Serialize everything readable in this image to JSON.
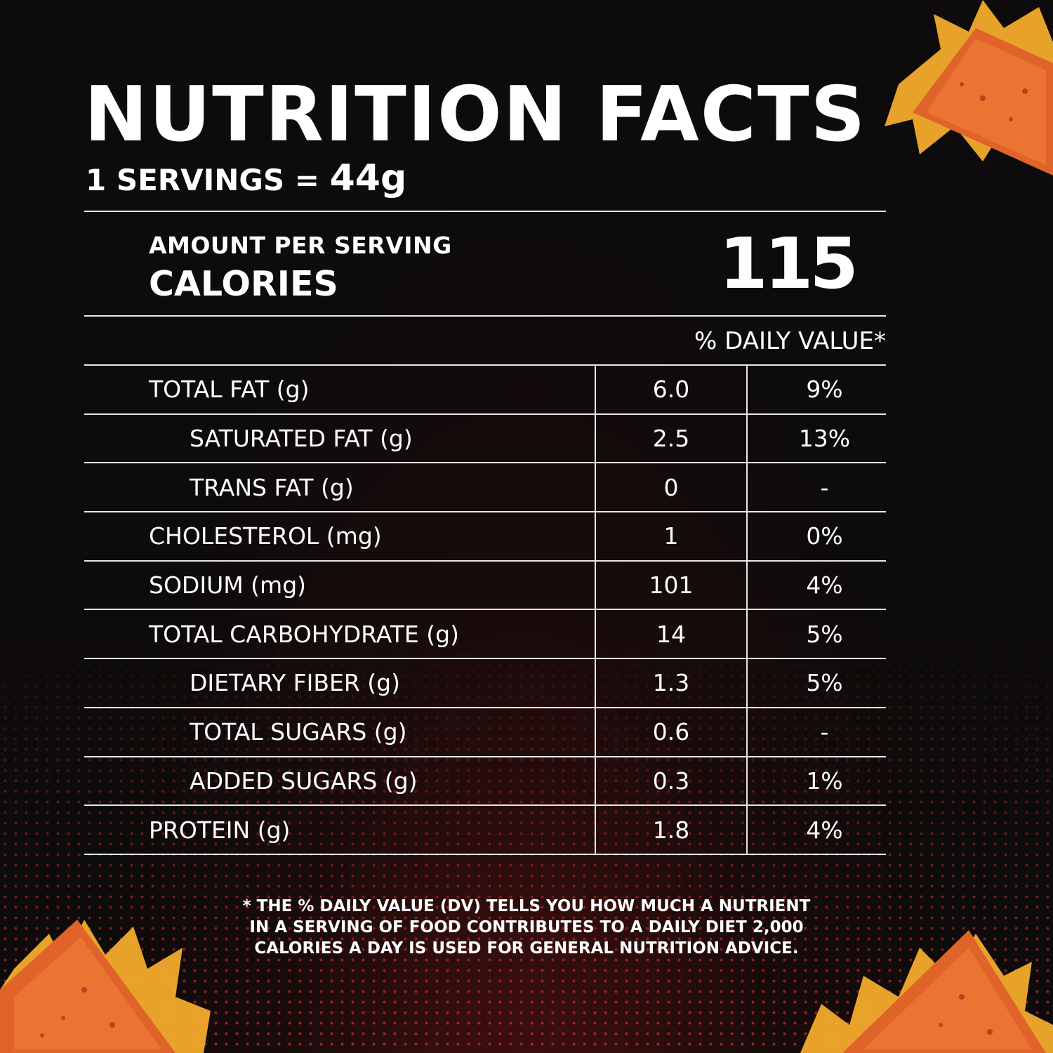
{
  "colors": {
    "background": "#0d0b0b",
    "text": "#ffffff",
    "rules": "#e8e8e8",
    "dot_accent": "#cd2d28",
    "chip_orange": "#e0642a",
    "flame_yellow": "#ffc83a"
  },
  "icons": {
    "chip_top_right": "tortilla-chip-with-flames",
    "chip_bottom_left": "tortilla-chip-with-flames",
    "chip_bottom_right": "tortilla-chip-with-flames"
  },
  "header": {
    "title": "NUTRITION FACTS",
    "serving_prefix": "1 SERVINGS =",
    "serving_amount": "44g"
  },
  "calories": {
    "amount_per_serving_label": "AMOUNT PER SERVING",
    "label": "CALORIES",
    "value": "115"
  },
  "daily_value_header": "% DAILY VALUE*",
  "nutrients": [
    {
      "name": "TOTAL FAT (g)",
      "amount": "6.0",
      "daily_value": "9%"
    },
    {
      "name": "SATURATED FAT (g)",
      "amount": "2.5",
      "daily_value": "13%"
    },
    {
      "name": "TRANS FAT (g)",
      "amount": "0",
      "daily_value": "-"
    },
    {
      "name": "CHOLESTEROL (mg)",
      "amount": "1",
      "daily_value": "0%"
    },
    {
      "name": "SODIUM (mg)",
      "amount": "101",
      "daily_value": "4%"
    },
    {
      "name": "TOTAL CARBOHYDRATE (g)",
      "amount": "14",
      "daily_value": "5%"
    },
    {
      "name": "DIETARY FIBER (g)",
      "amount": "1.3",
      "daily_value": "5%"
    },
    {
      "name": "TOTAL SUGARS (g)",
      "amount": "0.6",
      "daily_value": "-"
    },
    {
      "name": "ADDED SUGARS (g)",
      "amount": "0.3",
      "daily_value": "1%"
    },
    {
      "name": "PROTEIN (g)",
      "amount": "1.8",
      "daily_value": "4%"
    }
  ],
  "footnote": [
    "* THE % DAILY VALUE (DV) TELLS YOU HOW MUCH A NUTRIENT",
    "IN A SERVING OF FOOD CONTRIBUTES TO A DAILY DIET 2,000",
    "CALORIES A DAY IS USED FOR GENERAL NUTRITION ADVICE."
  ]
}
